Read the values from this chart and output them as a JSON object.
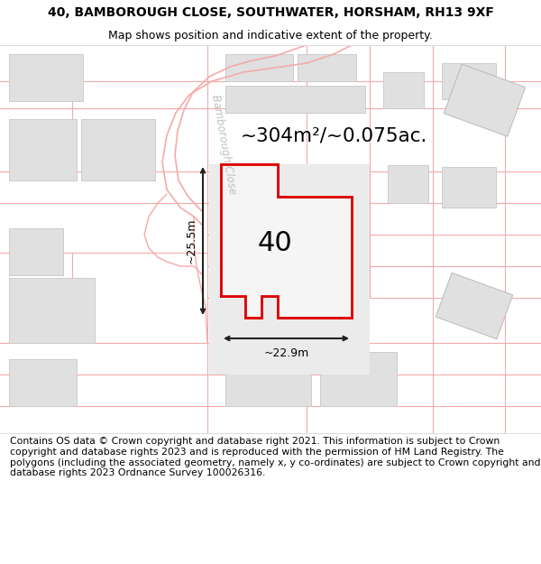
{
  "title": "40, BAMBOROUGH CLOSE, SOUTHWATER, HORSHAM, RH13 9XF",
  "subtitle": "Map shows position and indicative extent of the property.",
  "copyright": "Contains OS data © Crown copyright and database right 2021. This information is subject to Crown copyright and database rights 2023 and is reproduced with the permission of HM Land Registry. The polygons (including the associated geometry, namely x, y co-ordinates) are subject to Crown copyright and database rights 2023 Ordnance Survey 100026316.",
  "area_label": "~304m²/~0.075ac.",
  "width_label": "~22.9m",
  "height_label": "~25.5m",
  "number_label": "40",
  "bg_color": "#ffffff",
  "road_color": "#f5aaaa",
  "building_color": "#e0e0e0",
  "highlight_color": "#dd0000",
  "highlight_fill": "#f5f5f5",
  "arrow_color": "#333333",
  "street_label_color": "#c0c0c0",
  "title_fontsize": 10,
  "subtitle_fontsize": 9,
  "copyright_fontsize": 7.8
}
